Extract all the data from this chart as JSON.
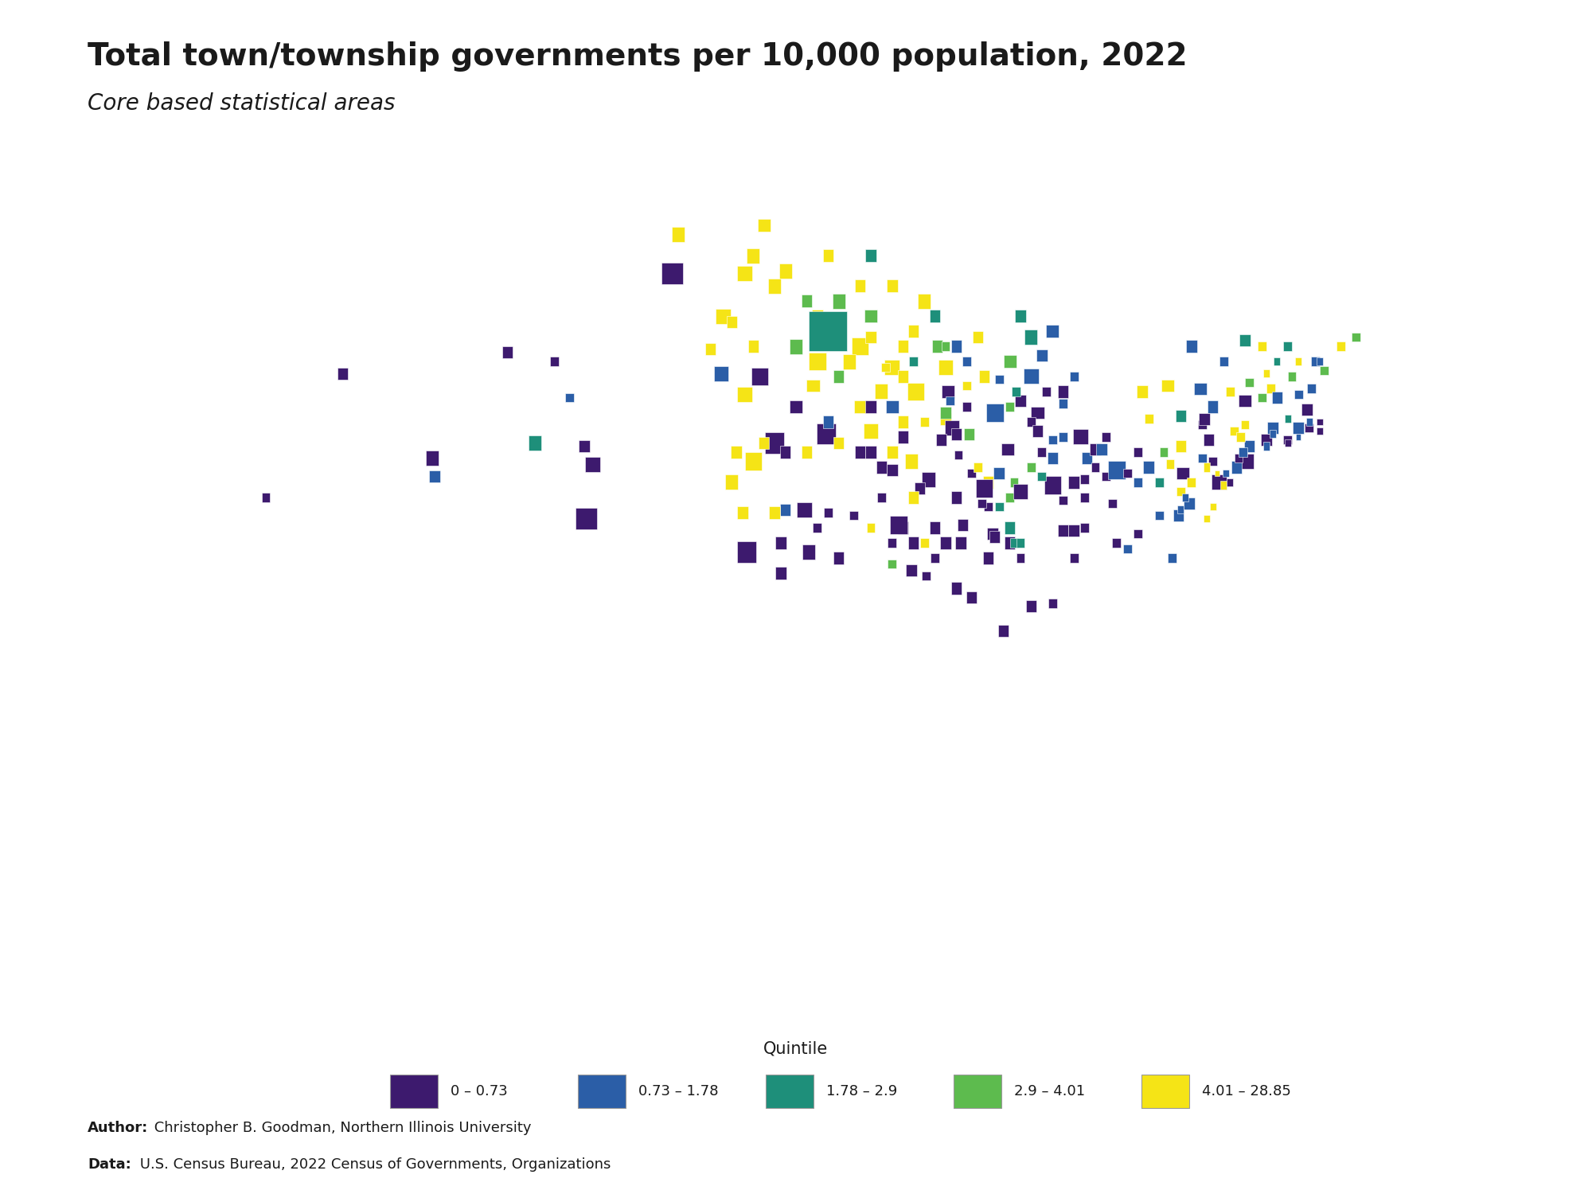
{
  "title": "Total town/township governments per 10,000 population, 2022",
  "subtitle": "Core based statistical areas",
  "author_text": "Author: Christopher B. Goodman, Northern Illinois University",
  "data_text": "Data: U.S. Census Bureau, 2022 Census of Governments, Organizations",
  "legend_title": "Quintile",
  "quintile_colors": [
    "#3d1a6e",
    "#2b5ea7",
    "#1e8f7a",
    "#5dbb4e",
    "#f5e416"
  ],
  "quintile_labels": [
    "0 – 0.73",
    "0.73 – 1.78",
    "1.78 – 2.9",
    "2.9 – 4.01",
    "4.01 – 28.85"
  ],
  "background_color": "#ffffff",
  "state_fill": "#ffffff",
  "state_edge": "#bbbbbb",
  "title_fontsize": 28,
  "subtitle_fontsize": 20,
  "note_fontsize": 13,
  "map_extent": [
    -125,
    -66.5,
    24.5,
    49.5
  ],
  "cbsa_patches": [
    [
      -104.8,
      38.8,
      1.0,
      0.7,
      0
    ],
    [
      -104.5,
      40.6,
      0.7,
      0.5,
      0
    ],
    [
      -107.2,
      41.3,
      0.6,
      0.5,
      2
    ],
    [
      -104.9,
      41.2,
      0.5,
      0.4,
      0
    ],
    [
      -100.8,
      46.9,
      1.0,
      0.7,
      0
    ],
    [
      -100.5,
      48.2,
      0.6,
      0.5,
      4
    ],
    [
      -98.4,
      45.5,
      0.7,
      0.5,
      4
    ],
    [
      -97.4,
      46.9,
      0.7,
      0.5,
      4
    ],
    [
      -97.0,
      47.5,
      0.6,
      0.5,
      4
    ],
    [
      -96.5,
      48.5,
      0.6,
      0.4,
      4
    ],
    [
      -96.7,
      43.5,
      0.8,
      0.6,
      0
    ],
    [
      -98.5,
      43.6,
      0.7,
      0.5,
      1
    ],
    [
      -99.0,
      44.4,
      0.5,
      0.4,
      4
    ],
    [
      -97.0,
      44.5,
      0.5,
      0.4,
      4
    ],
    [
      -98.0,
      45.3,
      0.5,
      0.4,
      4
    ],
    [
      -97.3,
      37.7,
      0.9,
      0.7,
      0
    ],
    [
      -95.5,
      39.1,
      0.5,
      0.4,
      1
    ],
    [
      -94.4,
      37.7,
      0.6,
      0.5,
      0
    ],
    [
      -95.7,
      38.0,
      0.5,
      0.4,
      0
    ],
    [
      -97.5,
      39.0,
      0.5,
      0.4,
      4
    ],
    [
      -96.0,
      39.0,
      0.5,
      0.4,
      4
    ],
    [
      -95.7,
      37.0,
      0.5,
      0.4,
      0
    ],
    [
      -96.0,
      41.3,
      0.9,
      0.7,
      0
    ],
    [
      -97.4,
      42.9,
      0.7,
      0.5,
      4
    ],
    [
      -97.0,
      40.7,
      0.8,
      0.6,
      4
    ],
    [
      -98.0,
      40.0,
      0.6,
      0.5,
      4
    ],
    [
      -97.8,
      41.0,
      0.5,
      0.4,
      4
    ],
    [
      -96.5,
      41.3,
      0.5,
      0.4,
      4
    ],
    [
      -95.5,
      41.0,
      0.5,
      0.4,
      0
    ],
    [
      -93.6,
      41.6,
      0.9,
      0.7,
      0
    ],
    [
      -91.5,
      41.7,
      0.7,
      0.5,
      4
    ],
    [
      -92.0,
      42.5,
      0.6,
      0.4,
      4
    ],
    [
      -90.5,
      42.5,
      0.6,
      0.4,
      1
    ],
    [
      -95.0,
      42.5,
      0.6,
      0.4,
      0
    ],
    [
      -94.2,
      43.2,
      0.6,
      0.4,
      4
    ],
    [
      -94.5,
      41.0,
      0.5,
      0.4,
      4
    ],
    [
      -93.0,
      41.3,
      0.5,
      0.4,
      4
    ],
    [
      -91.5,
      41.0,
      0.5,
      0.4,
      0
    ],
    [
      -92.0,
      41.0,
      0.5,
      0.4,
      0
    ],
    [
      -90.5,
      41.0,
      0.5,
      0.4,
      4
    ],
    [
      -91.0,
      40.5,
      0.5,
      0.4,
      0
    ],
    [
      -93.5,
      42.0,
      0.5,
      0.4,
      1
    ],
    [
      -95.5,
      47.0,
      0.6,
      0.5,
      4
    ],
    [
      -96.0,
      46.5,
      0.6,
      0.5,
      4
    ],
    [
      -94.5,
      46.0,
      0.5,
      0.4,
      3
    ],
    [
      -95.0,
      44.5,
      0.6,
      0.5,
      3
    ],
    [
      -94.0,
      45.5,
      0.5,
      0.4,
      4
    ],
    [
      -92.0,
      46.5,
      0.5,
      0.4,
      4
    ],
    [
      -91.5,
      47.5,
      0.5,
      0.4,
      2
    ],
    [
      -93.5,
      47.5,
      0.5,
      0.4,
      4
    ],
    [
      -93.5,
      45.0,
      1.8,
      1.3,
      2
    ],
    [
      -94.0,
      44.0,
      0.8,
      0.6,
      4
    ],
    [
      -92.0,
      44.5,
      0.8,
      0.6,
      4
    ],
    [
      -90.5,
      43.8,
      0.7,
      0.5,
      4
    ],
    [
      -91.5,
      45.5,
      0.6,
      0.4,
      3
    ],
    [
      -93.0,
      46.0,
      0.6,
      0.5,
      3
    ],
    [
      -92.5,
      44.0,
      0.6,
      0.5,
      4
    ],
    [
      -93.0,
      43.5,
      0.5,
      0.4,
      3
    ],
    [
      -91.0,
      43.0,
      0.6,
      0.5,
      4
    ],
    [
      -90.0,
      42.0,
      0.5,
      0.4,
      4
    ],
    [
      -91.5,
      42.5,
      0.5,
      0.4,
      0
    ],
    [
      -89.4,
      43.0,
      0.8,
      0.6,
      4
    ],
    [
      -88.0,
      43.8,
      0.7,
      0.5,
      4
    ],
    [
      -87.9,
      43.0,
      0.6,
      0.4,
      0
    ],
    [
      -88.4,
      44.5,
      0.5,
      0.4,
      3
    ],
    [
      -90.0,
      44.5,
      0.5,
      0.4,
      4
    ],
    [
      -91.5,
      44.8,
      0.5,
      0.4,
      4
    ],
    [
      -89.0,
      46.0,
      0.6,
      0.5,
      4
    ],
    [
      -90.5,
      46.5,
      0.5,
      0.4,
      4
    ],
    [
      -88.5,
      45.5,
      0.5,
      0.4,
      2
    ],
    [
      -87.5,
      44.5,
      0.5,
      0.4,
      1
    ],
    [
      -88.0,
      44.5,
      0.4,
      0.3,
      3
    ],
    [
      -87.0,
      44.0,
      0.4,
      0.3,
      1
    ],
    [
      -87.0,
      43.2,
      0.4,
      0.3,
      4
    ],
    [
      -90.8,
      43.8,
      0.4,
      0.3,
      4
    ],
    [
      -89.5,
      45.0,
      0.5,
      0.4,
      4
    ],
    [
      -90.0,
      43.5,
      0.5,
      0.4,
      4
    ],
    [
      -89.5,
      44.0,
      0.4,
      0.3,
      2
    ],
    [
      -88.0,
      42.1,
      0.5,
      0.4,
      4
    ],
    [
      -87.7,
      41.8,
      0.7,
      0.5,
      0
    ],
    [
      -88.2,
      41.4,
      0.5,
      0.4,
      0
    ],
    [
      -88.8,
      40.1,
      0.6,
      0.5,
      0
    ],
    [
      -89.6,
      40.7,
      0.6,
      0.5,
      4
    ],
    [
      -90.0,
      41.5,
      0.5,
      0.4,
      0
    ],
    [
      -89.2,
      39.8,
      0.5,
      0.4,
      0
    ],
    [
      -88.0,
      42.3,
      0.5,
      0.4,
      3
    ],
    [
      -87.8,
      42.7,
      0.4,
      0.3,
      1
    ],
    [
      -89.0,
      42.0,
      0.4,
      0.3,
      4
    ],
    [
      -90.5,
      40.4,
      0.5,
      0.4,
      0
    ],
    [
      -90.0,
      38.5,
      0.5,
      0.4,
      0
    ],
    [
      -89.5,
      39.5,
      0.5,
      0.4,
      4
    ],
    [
      -88.0,
      38.0,
      0.5,
      0.4,
      0
    ],
    [
      -88.5,
      38.5,
      0.5,
      0.4,
      0
    ],
    [
      -89.5,
      38.0,
      0.5,
      0.4,
      0
    ],
    [
      -87.5,
      39.5,
      0.5,
      0.4,
      0
    ],
    [
      -86.0,
      40.0,
      0.5,
      0.4,
      4
    ],
    [
      -87.0,
      42.5,
      0.4,
      0.3,
      0
    ],
    [
      -87.4,
      40.9,
      0.4,
      0.3,
      0
    ],
    [
      -86.8,
      40.3,
      0.4,
      0.3,
      0
    ],
    [
      -86.0,
      39.2,
      0.4,
      0.3,
      0
    ],
    [
      -86.2,
      39.8,
      0.8,
      0.6,
      0
    ],
    [
      -85.1,
      41.1,
      0.6,
      0.4,
      0
    ],
    [
      -85.5,
      40.3,
      0.5,
      0.4,
      1
    ],
    [
      -86.9,
      41.6,
      0.5,
      0.4,
      3
    ],
    [
      -87.5,
      41.6,
      0.5,
      0.4,
      0
    ],
    [
      -85.8,
      38.3,
      0.5,
      0.4,
      0
    ],
    [
      -85.5,
      39.2,
      0.4,
      0.3,
      2
    ],
    [
      -86.5,
      40.5,
      0.4,
      0.3,
      4
    ],
    [
      -87.2,
      38.6,
      0.5,
      0.4,
      0
    ],
    [
      -84.8,
      40.0,
      0.4,
      0.3,
      3
    ],
    [
      -85.0,
      39.5,
      0.4,
      0.3,
      3
    ],
    [
      -87.3,
      38.0,
      0.5,
      0.4,
      0
    ],
    [
      -85.0,
      38.5,
      0.5,
      0.4,
      2
    ],
    [
      -86.3,
      39.3,
      0.4,
      0.3,
      0
    ],
    [
      -86.0,
      37.5,
      0.5,
      0.4,
      0
    ],
    [
      -85.0,
      38.0,
      0.5,
      0.4,
      0
    ],
    [
      -84.5,
      37.5,
      0.4,
      0.3,
      0
    ],
    [
      -85.7,
      38.2,
      0.5,
      0.4,
      0
    ],
    [
      -84.8,
      38.0,
      0.4,
      0.3,
      2
    ],
    [
      -85.7,
      42.3,
      0.8,
      0.6,
      1
    ],
    [
      -84.0,
      43.5,
      0.7,
      0.5,
      1
    ],
    [
      -83.7,
      42.3,
      0.6,
      0.4,
      0
    ],
    [
      -84.5,
      42.7,
      0.5,
      0.4,
      0
    ],
    [
      -86.2,
      43.5,
      0.5,
      0.4,
      4
    ],
    [
      -84.0,
      44.8,
      0.6,
      0.5,
      2
    ],
    [
      -84.5,
      45.5,
      0.5,
      0.4,
      2
    ],
    [
      -83.0,
      45.0,
      0.6,
      0.4,
      1
    ],
    [
      -82.5,
      43.0,
      0.5,
      0.4,
      0
    ],
    [
      -86.5,
      44.8,
      0.5,
      0.4,
      4
    ],
    [
      -85.0,
      44.0,
      0.6,
      0.4,
      3
    ],
    [
      -83.5,
      44.2,
      0.5,
      0.4,
      1
    ],
    [
      -85.5,
      43.4,
      0.4,
      0.3,
      1
    ],
    [
      -84.7,
      43.0,
      0.4,
      0.3,
      2
    ],
    [
      -83.3,
      43.0,
      0.4,
      0.3,
      0
    ],
    [
      -82.5,
      42.6,
      0.4,
      0.3,
      1
    ],
    [
      -82.0,
      43.5,
      0.4,
      0.3,
      1
    ],
    [
      -84.0,
      42.0,
      0.4,
      0.3,
      0
    ],
    [
      -85.0,
      42.5,
      0.4,
      0.3,
      3
    ],
    [
      -83.0,
      39.9,
      0.8,
      0.6,
      0
    ],
    [
      -81.7,
      41.5,
      0.7,
      0.5,
      0
    ],
    [
      -84.5,
      39.7,
      0.7,
      0.5,
      0
    ],
    [
      -81.4,
      40.8,
      0.5,
      0.4,
      1
    ],
    [
      -83.7,
      41.7,
      0.5,
      0.4,
      0
    ],
    [
      -83.0,
      40.8,
      0.5,
      0.4,
      1
    ],
    [
      -81.0,
      41.1,
      0.5,
      0.4,
      0
    ],
    [
      -82.0,
      40.0,
      0.5,
      0.4,
      0
    ],
    [
      -82.0,
      38.4,
      0.5,
      0.4,
      0
    ],
    [
      -80.7,
      41.1,
      0.5,
      0.4,
      1
    ],
    [
      -83.5,
      40.2,
      0.4,
      0.3,
      2
    ],
    [
      -82.5,
      39.4,
      0.4,
      0.3,
      0
    ],
    [
      -84.0,
      40.5,
      0.4,
      0.3,
      3
    ],
    [
      -81.5,
      40.1,
      0.4,
      0.3,
      0
    ],
    [
      -83.0,
      41.4,
      0.4,
      0.3,
      1
    ],
    [
      -81.0,
      40.5,
      0.4,
      0.3,
      0
    ],
    [
      -80.5,
      40.2,
      0.4,
      0.3,
      0
    ],
    [
      -81.5,
      39.5,
      0.4,
      0.3,
      0
    ],
    [
      -82.5,
      41.5,
      0.4,
      0.3,
      1
    ],
    [
      -83.5,
      41.0,
      0.4,
      0.3,
      0
    ],
    [
      -90.2,
      38.6,
      0.8,
      0.6,
      0
    ],
    [
      -94.6,
      39.1,
      0.7,
      0.5,
      0
    ],
    [
      -89.6,
      37.1,
      0.5,
      0.4,
      0
    ],
    [
      -90.5,
      38.0,
      0.4,
      0.3,
      0
    ],
    [
      -92.3,
      38.9,
      0.4,
      0.3,
      0
    ],
    [
      -94.0,
      38.5,
      0.4,
      0.3,
      0
    ],
    [
      -93.5,
      39.0,
      0.4,
      0.3,
      0
    ],
    [
      -91.0,
      39.5,
      0.4,
      0.3,
      0
    ],
    [
      -93.0,
      37.5,
      0.5,
      0.4,
      0
    ],
    [
      -91.5,
      38.5,
      0.4,
      0.3,
      4
    ],
    [
      -90.5,
      37.3,
      0.4,
      0.3,
      3
    ],
    [
      -89.0,
      38.0,
      0.4,
      0.3,
      4
    ],
    [
      -88.5,
      37.5,
      0.4,
      0.3,
      0
    ],
    [
      -88.9,
      36.9,
      0.4,
      0.3,
      0
    ],
    [
      -87.5,
      36.5,
      0.5,
      0.4,
      0
    ],
    [
      -86.8,
      36.2,
      0.5,
      0.4,
      0
    ],
    [
      -85.3,
      35.1,
      0.5,
      0.4,
      0
    ],
    [
      -84.0,
      35.9,
      0.5,
      0.4,
      0
    ],
    [
      -83.0,
      36.0,
      0.4,
      0.3,
      0
    ],
    [
      -82.5,
      38.4,
      0.5,
      0.4,
      0
    ],
    [
      -82.0,
      37.5,
      0.4,
      0.3,
      0
    ],
    [
      -84.5,
      38.0,
      0.4,
      0.3,
      2
    ],
    [
      -80.0,
      40.4,
      0.8,
      0.6,
      1
    ],
    [
      -75.2,
      40.0,
      0.7,
      0.5,
      0
    ],
    [
      -76.9,
      40.3,
      0.6,
      0.4,
      0
    ],
    [
      -75.7,
      41.4,
      0.5,
      0.4,
      0
    ],
    [
      -78.5,
      40.5,
      0.5,
      0.4,
      1
    ],
    [
      -77.0,
      41.2,
      0.5,
      0.4,
      4
    ],
    [
      -76.5,
      40.0,
      0.4,
      0.3,
      4
    ],
    [
      -75.5,
      40.7,
      0.4,
      0.3,
      0
    ],
    [
      -78.0,
      40.0,
      0.4,
      0.3,
      2
    ],
    [
      -80.5,
      41.5,
      0.4,
      0.3,
      0
    ],
    [
      -79.0,
      40.0,
      0.4,
      0.3,
      1
    ],
    [
      -77.5,
      40.6,
      0.4,
      0.3,
      4
    ],
    [
      -76.0,
      41.9,
      0.4,
      0.3,
      0
    ],
    [
      -77.0,
      39.7,
      0.4,
      0.3,
      4
    ],
    [
      -75.8,
      40.5,
      0.3,
      0.3,
      4
    ],
    [
      -79.5,
      40.3,
      0.4,
      0.3,
      0
    ],
    [
      -79.0,
      41.0,
      0.4,
      0.3,
      0
    ],
    [
      -76.0,
      40.8,
      0.4,
      0.3,
      1
    ],
    [
      -77.8,
      41.0,
      0.4,
      0.3,
      3
    ],
    [
      -78.5,
      42.1,
      0.4,
      0.3,
      4
    ],
    [
      -73.9,
      40.7,
      0.6,
      0.5,
      0
    ],
    [
      -73.8,
      41.2,
      0.5,
      0.4,
      1
    ],
    [
      -76.1,
      43.1,
      0.6,
      0.4,
      1
    ],
    [
      -77.6,
      43.2,
      0.6,
      0.4,
      4
    ],
    [
      -74.0,
      42.7,
      0.6,
      0.4,
      0
    ],
    [
      -75.5,
      42.5,
      0.5,
      0.4,
      1
    ],
    [
      -75.9,
      42.1,
      0.5,
      0.4,
      0
    ],
    [
      -73.0,
      41.4,
      0.5,
      0.4,
      0
    ],
    [
      -74.5,
      41.7,
      0.4,
      0.3,
      4
    ],
    [
      -74.0,
      44.7,
      0.5,
      0.4,
      2
    ],
    [
      -76.5,
      44.5,
      0.5,
      0.4,
      1
    ],
    [
      -75.0,
      44.0,
      0.4,
      0.3,
      1
    ],
    [
      -78.8,
      43.0,
      0.5,
      0.4,
      4
    ],
    [
      -77.0,
      42.2,
      0.5,
      0.4,
      2
    ],
    [
      -73.8,
      43.3,
      0.4,
      0.3,
      3
    ],
    [
      -74.7,
      43.0,
      0.4,
      0.3,
      4
    ],
    [
      -73.2,
      42.8,
      0.4,
      0.3,
      3
    ],
    [
      -74.2,
      41.5,
      0.4,
      0.3,
      4
    ],
    [
      -74.0,
      41.9,
      0.4,
      0.3,
      4
    ],
    [
      -72.8,
      43.1,
      0.4,
      0.3,
      4
    ],
    [
      -71.8,
      43.5,
      0.4,
      0.3,
      3
    ],
    [
      -70.7,
      44.0,
      0.4,
      0.3,
      1
    ],
    [
      -71.1,
      42.4,
      0.5,
      0.4,
      0
    ],
    [
      -71.5,
      41.8,
      0.5,
      0.4,
      1
    ],
    [
      -72.7,
      41.8,
      0.5,
      0.4,
      1
    ],
    [
      -70.9,
      43.1,
      0.4,
      0.3,
      1
    ],
    [
      -72.5,
      42.8,
      0.5,
      0.4,
      1
    ],
    [
      -71.5,
      42.9,
      0.4,
      0.3,
      1
    ],
    [
      -70.3,
      43.7,
      0.4,
      0.3,
      3
    ],
    [
      -68.8,
      44.8,
      0.4,
      0.3,
      3
    ],
    [
      -72.0,
      44.5,
      0.4,
      0.3,
      2
    ],
    [
      -73.2,
      44.5,
      0.4,
      0.3,
      4
    ],
    [
      -71.0,
      41.8,
      0.4,
      0.3,
      0
    ],
    [
      -72.0,
      41.4,
      0.4,
      0.3,
      0
    ],
    [
      -73.0,
      41.2,
      0.3,
      0.3,
      1
    ],
    [
      -70.5,
      42.0,
      0.3,
      0.2,
      0
    ],
    [
      -72.0,
      42.1,
      0.3,
      0.25,
      2
    ],
    [
      -71.0,
      42.0,
      0.3,
      0.25,
      1
    ],
    [
      -70.5,
      41.7,
      0.3,
      0.25,
      0
    ],
    [
      -69.5,
      44.5,
      0.4,
      0.3,
      4
    ],
    [
      -70.5,
      44.0,
      0.3,
      0.25,
      1
    ],
    [
      -72.5,
      44.0,
      0.3,
      0.25,
      2
    ],
    [
      -73.0,
      43.6,
      0.3,
      0.25,
      4
    ],
    [
      -71.5,
      44.0,
      0.3,
      0.25,
      4
    ],
    [
      -72.7,
      41.6,
      0.3,
      0.25,
      1
    ],
    [
      -72.0,
      41.3,
      0.3,
      0.25,
      0
    ],
    [
      -71.5,
      41.5,
      0.25,
      0.2,
      1
    ],
    [
      -74.4,
      40.5,
      0.5,
      0.4,
      1
    ],
    [
      -74.3,
      40.8,
      0.4,
      0.3,
      0
    ],
    [
      -74.1,
      41.0,
      0.4,
      0.3,
      1
    ],
    [
      -75.0,
      39.9,
      0.3,
      0.3,
      4
    ],
    [
      -74.7,
      40.0,
      0.3,
      0.25,
      0
    ],
    [
      -74.9,
      40.3,
      0.3,
      0.25,
      1
    ],
    [
      -75.3,
      40.3,
      0.25,
      0.2,
      4
    ],
    [
      -76.6,
      39.3,
      0.5,
      0.4,
      1
    ],
    [
      -77.1,
      38.9,
      0.5,
      0.4,
      1
    ],
    [
      -77.4,
      37.5,
      0.4,
      0.3,
      1
    ],
    [
      -79.0,
      38.3,
      0.4,
      0.3,
      0
    ],
    [
      -80.2,
      39.3,
      0.4,
      0.3,
      0
    ],
    [
      -81.5,
      38.5,
      0.4,
      0.3,
      0
    ],
    [
      -80.0,
      38.0,
      0.4,
      0.3,
      0
    ],
    [
      -79.5,
      37.8,
      0.4,
      0.3,
      1
    ],
    [
      -78.0,
      38.9,
      0.4,
      0.3,
      1
    ],
    [
      -76.8,
      39.5,
      0.3,
      0.25,
      1
    ],
    [
      -77.0,
      39.1,
      0.3,
      0.25,
      1
    ],
    [
      -75.8,
      38.8,
      0.3,
      0.25,
      4
    ],
    [
      -75.5,
      39.2,
      0.3,
      0.25,
      4
    ],
    [
      -112.0,
      40.8,
      0.6,
      0.5,
      0
    ],
    [
      -111.9,
      40.2,
      0.5,
      0.4,
      1
    ],
    [
      -116.2,
      43.6,
      0.5,
      0.4,
      0
    ],
    [
      -119.8,
      39.5,
      0.4,
      0.3,
      0
    ],
    [
      -108.5,
      44.3,
      0.5,
      0.4,
      0
    ],
    [
      -105.6,
      42.8,
      0.4,
      0.3,
      1
    ],
    [
      -106.3,
      44.0,
      0.4,
      0.3,
      0
    ]
  ]
}
